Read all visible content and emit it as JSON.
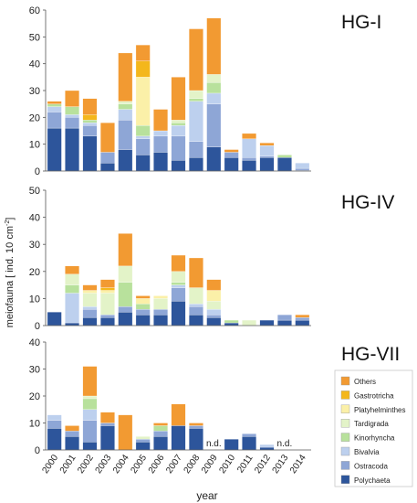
{
  "figure": {
    "ylabel_text": "meiofauna",
    "ylabel_unit": "[ ind. 10 cm",
    "ylabel_sup": "-2",
    "ylabel_close": "]",
    "xlabel": "year",
    "nd_label": "n.d."
  },
  "colors": {
    "Polychaeta": "#2d559b",
    "Ostracoda": "#8ea6d6",
    "Bivalvia": "#bdd0ee",
    "Kinorhyncha": "#b8e19c",
    "Tardigrada": "#e3f3c8",
    "Platyhelminthes": "#fbf0a8",
    "Gastrotricha": "#f4b71c",
    "Others": "#f29a32"
  },
  "legend": [
    "Others",
    "Gastrotricha",
    "Platyhelminthes",
    "Tardigrada",
    "Kinorhyncha",
    "Bivalvia",
    "Ostracoda",
    "Polychaeta"
  ],
  "chart_data": [
    {
      "type": "bar",
      "stacked": true,
      "title": "HG-I",
      "ylim": [
        0,
        60
      ],
      "yticks": [
        0,
        10,
        20,
        30,
        40,
        50,
        60
      ],
      "categories": [
        "2000",
        "2001",
        "2002",
        "2003",
        "2004",
        "2005",
        "2006",
        "2007",
        "2008",
        "2009",
        "2010",
        "2011",
        "2012",
        "2013",
        "2014"
      ],
      "not_determined": [],
      "series": [
        {
          "name": "Polychaeta",
          "values": [
            16,
            16,
            13,
            3,
            8,
            6,
            7,
            4,
            5,
            9,
            5,
            4,
            5,
            5,
            0.3
          ]
        },
        {
          "name": "Ostracoda",
          "values": [
            6,
            4,
            4,
            4,
            11,
            6,
            6,
            9,
            6,
            16,
            2,
            1,
            0.5,
            0,
            0.7
          ]
        },
        {
          "name": "Bivalvia",
          "values": [
            2,
            1,
            1,
            0,
            4,
            1,
            2,
            4,
            15,
            4,
            0,
            7,
            4,
            0,
            2
          ]
        },
        {
          "name": "Kinorhyncha",
          "values": [
            1,
            3,
            1,
            0,
            2,
            4,
            0,
            1,
            1,
            4,
            0,
            0,
            0,
            1,
            0
          ]
        },
        {
          "name": "Tardigrada",
          "values": [
            0,
            0,
            0,
            0,
            1,
            0,
            0,
            1,
            3,
            3,
            0,
            0,
            0,
            0,
            0
          ]
        },
        {
          "name": "Platyhelminthes",
          "values": [
            0,
            0,
            0,
            0,
            0,
            18,
            0,
            0,
            0,
            0,
            0,
            0,
            0,
            0,
            0
          ]
        },
        {
          "name": "Gastrotricha",
          "values": [
            0,
            0,
            2,
            0,
            0,
            6,
            0,
            0,
            0,
            0,
            0,
            0,
            0,
            0,
            0
          ]
        },
        {
          "name": "Others",
          "values": [
            1,
            6,
            6,
            11,
            18,
            6,
            8,
            16,
            23,
            21,
            1,
            2,
            1,
            0,
            0
          ]
        }
      ]
    },
    {
      "type": "bar",
      "stacked": true,
      "title": "HG-IV",
      "ylim": [
        0,
        50
      ],
      "yticks": [
        0,
        10,
        20,
        30,
        40,
        50
      ],
      "categories": [
        "2000",
        "2001",
        "2002",
        "2003",
        "2004",
        "2005",
        "2006",
        "2007",
        "2008",
        "2009",
        "2010",
        "2011",
        "2012",
        "2013",
        "2014"
      ],
      "not_determined": [],
      "series": [
        {
          "name": "Polychaeta",
          "values": [
            5,
            1,
            3,
            3,
            5,
            4,
            4,
            9,
            4,
            3,
            1,
            0,
            2,
            2,
            2
          ]
        },
        {
          "name": "Ostracoda",
          "values": [
            0,
            0,
            3,
            1,
            2,
            2,
            2,
            5,
            3,
            1,
            0,
            0,
            0,
            2,
            1
          ]
        },
        {
          "name": "Bivalvia",
          "values": [
            0,
            11,
            1,
            0,
            0,
            0,
            0,
            1,
            1,
            2,
            0,
            0,
            0,
            0,
            0
          ]
        },
        {
          "name": "Kinorhyncha",
          "values": [
            0,
            3,
            0,
            0,
            9,
            2,
            0,
            1,
            0,
            0,
            1,
            0,
            0,
            0,
            0
          ]
        },
        {
          "name": "Tardigrada",
          "values": [
            0,
            4,
            5,
            8,
            6,
            0,
            4,
            4,
            6,
            3,
            0,
            2,
            0,
            0,
            0
          ]
        },
        {
          "name": "Platyhelminthes",
          "values": [
            0,
            0,
            1,
            1,
            0,
            2,
            1,
            0,
            0,
            4,
            0,
            0,
            0,
            0,
            0
          ]
        },
        {
          "name": "Gastrotricha",
          "values": [
            0,
            0,
            0,
            1,
            0,
            0,
            0,
            0,
            0,
            0,
            0,
            0,
            0,
            0,
            0
          ]
        },
        {
          "name": "Others",
          "values": [
            0,
            3,
            2,
            3,
            12,
            1,
            0,
            6,
            11,
            4,
            0,
            0,
            0,
            0,
            1
          ]
        }
      ]
    },
    {
      "type": "bar",
      "stacked": true,
      "title": "HG-VII",
      "ylim": [
        0,
        40
      ],
      "yticks": [
        0,
        10,
        20,
        30,
        40
      ],
      "categories": [
        "2000",
        "2001",
        "2002",
        "2003",
        "2004",
        "2005",
        "2006",
        "2007",
        "2008",
        "2009",
        "2010",
        "2011",
        "2012",
        "2013",
        "2014"
      ],
      "not_determined": [
        "2009",
        "2013"
      ],
      "series": [
        {
          "name": "Polychaeta",
          "values": [
            8,
            5,
            3,
            9,
            0,
            3,
            5,
            9,
            8,
            0,
            4,
            5,
            1,
            0,
            0
          ]
        },
        {
          "name": "Ostracoda",
          "values": [
            3,
            2,
            8,
            1,
            0,
            1,
            2,
            0,
            1,
            0,
            0,
            1,
            0,
            0,
            0
          ]
        },
        {
          "name": "Bivalvia",
          "values": [
            2,
            0,
            4,
            0,
            0,
            0,
            0,
            0,
            0,
            0,
            0,
            0,
            1,
            0,
            0
          ]
        },
        {
          "name": "Kinorhyncha",
          "values": [
            0,
            0,
            4,
            0,
            0,
            0,
            2,
            0,
            0,
            0,
            0,
            0,
            0,
            0,
            0
          ]
        },
        {
          "name": "Tardigrada",
          "values": [
            0,
            0,
            1,
            0,
            0,
            1,
            0,
            0,
            0,
            0,
            0,
            0,
            0,
            0,
            0
          ]
        },
        {
          "name": "Platyhelminthes",
          "values": [
            0,
            0,
            0,
            0,
            0,
            0,
            0,
            0,
            0,
            0,
            0,
            0,
            0,
            0,
            0
          ]
        },
        {
          "name": "Gastrotricha",
          "values": [
            0,
            0,
            0,
            0,
            0,
            0,
            0,
            0,
            0,
            0,
            0,
            0,
            0,
            0,
            0
          ]
        },
        {
          "name": "Others",
          "values": [
            0,
            2,
            11,
            4,
            13,
            0,
            1,
            8,
            1,
            0,
            0,
            0,
            0,
            0,
            0
          ]
        }
      ]
    }
  ]
}
